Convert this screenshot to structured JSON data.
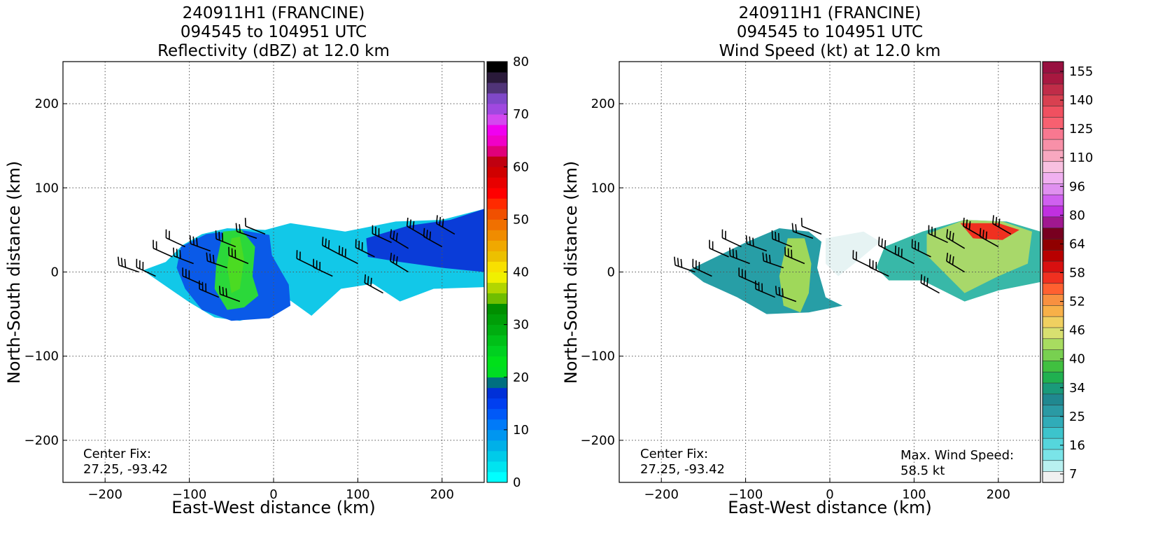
{
  "chart_data": [
    {
      "type": "heatmap",
      "title": [
        "240911H1 (FRANCINE)",
        "094545 to 104951 UTC",
        "Reflectivity (dBZ) at 12.0 km"
      ],
      "xlabel": "East-West distance (km)",
      "ylabel": "North-South distance (km)",
      "xlim": [
        -250,
        250
      ],
      "ylim": [
        -250,
        250
      ],
      "xticks": [
        -200,
        -100,
        0,
        100,
        200
      ],
      "yticks": [
        200,
        100,
        0,
        -100,
        -200
      ],
      "grid": true,
      "annotations": [
        {
          "text": "Center Fix:",
          "position": "bottom-left"
        },
        {
          "text": "27.25, -93.42",
          "position": "bottom-left"
        }
      ],
      "colorbar": {
        "label_values": [
          80,
          70,
          60,
          50,
          40,
          30,
          20,
          10,
          0
        ],
        "levels": 32,
        "colors": [
          "#00ffff",
          "#00e4f0",
          "#00cbe9",
          "#00b0e8",
          "#0096f0",
          "#007af8",
          "#0059f8",
          "#003ff0",
          "#0030d8",
          "#006f80",
          "#00dd22",
          "#00e01a",
          "#00d020",
          "#00c018",
          "#00ad10",
          "#009e08",
          "#008f00",
          "#6fbe00",
          "#b2d600",
          "#f0f000",
          "#f8e000",
          "#ecc000",
          "#f0a800",
          "#f08c00",
          "#f07000",
          "#f05000",
          "#ff2a00",
          "#ff0000",
          "#e80000",
          "#d00000",
          "#c00010",
          "#e0007a",
          "#f000c8",
          "#f000f0",
          "#d448f0",
          "#a048e0",
          "#7f48c8",
          "#503478",
          "#2a1a3a",
          "#000000"
        ]
      },
      "wind_barbs": true
    },
    {
      "type": "heatmap",
      "title": [
        "240911H1 (FRANCINE)",
        "094545 to 104951 UTC",
        "Wind Speed (kt) at 12.0 km"
      ],
      "xlabel": "East-West distance (km)",
      "ylabel": "North-South distance (km)",
      "xlim": [
        -250,
        250
      ],
      "ylim": [
        -250,
        250
      ],
      "xticks": [
        -200,
        -100,
        0,
        100,
        200
      ],
      "yticks": [
        200,
        100,
        0,
        -100,
        -200
      ],
      "grid": true,
      "annotations": [
        {
          "text": "Center Fix:",
          "position": "bottom-left"
        },
        {
          "text": "27.25, -93.42",
          "position": "bottom-left"
        },
        {
          "text": "Max. Wind Speed:",
          "position": "bottom-right"
        },
        {
          "text": "58.5 kt",
          "position": "bottom-right"
        }
      ],
      "max_wind_speed_kt": 58.5,
      "colorbar": {
        "label_values": [
          155,
          140,
          125,
          110,
          96,
          80,
          64,
          58,
          52,
          46,
          40,
          34,
          25,
          16,
          7
        ],
        "colors": [
          "#f0f0f0",
          "#b8f0f0",
          "#7ae4e8",
          "#55d6dc",
          "#3cc4cc",
          "#30acb8",
          "#2a9aa4",
          "#208890",
          "#1a9a7a",
          "#20b050",
          "#40c040",
          "#78d050",
          "#a8dc60",
          "#d8e070",
          "#f0d060",
          "#f8b048",
          "#f89040",
          "#ff6030",
          "#f03020",
          "#d81010",
          "#b80000",
          "#900000",
          "#780020",
          "#a01890",
          "#c030e0",
          "#d060f0",
          "#e090f0",
          "#f0b0f0",
          "#f8c0e0",
          "#f8a8c0",
          "#f890a8",
          "#f87890",
          "#f86070",
          "#f05060",
          "#d84050",
          "#c02c48",
          "#a81840",
          "#981040"
        ]
      },
      "wind_barbs": true
    }
  ]
}
